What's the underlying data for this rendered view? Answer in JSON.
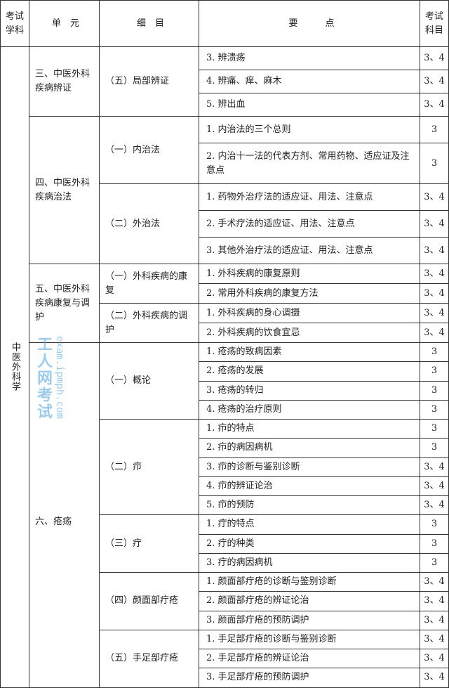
{
  "header": {
    "subject": "考试学科",
    "unit": "单　元",
    "item": "细　目",
    "points": "要　　　点",
    "exam": "考试科目"
  },
  "subject": "中医外科学",
  "units": [
    {
      "name": "三、中医外科疾病辨证",
      "items": [
        {
          "name": "（五）局部辨证",
          "points": [
            {
              "text": "3. 辨溃疡",
              "exam": "3、4"
            },
            {
              "text": "4. 辨痛、痒、麻木",
              "exam": "3、4"
            },
            {
              "text": "5. 辨出血",
              "exam": "3、4"
            }
          ]
        }
      ]
    },
    {
      "name": "四、中医外科疾病治法",
      "items": [
        {
          "name": "（一）内治法",
          "points": [
            {
              "text": "1. 内治法的三个总则",
              "exam": "3"
            },
            {
              "text": "2. 内治十一法的代表方剂、常用药物、适应证及注意点",
              "exam": "3"
            }
          ]
        },
        {
          "name": "（二）外治法",
          "points": [
            {
              "text": "1. 药物外治疗法的适应证、用法、注意点",
              "exam": "3、4"
            },
            {
              "text": "2. 手术疗法的适应证、用法、注意点",
              "exam": "3、4"
            },
            {
              "text": "3. 其他外治疗法的适应证、用法、注意点",
              "exam": "3、4"
            }
          ]
        }
      ]
    },
    {
      "name": "五、中医外科疾病康复与调护",
      "items": [
        {
          "name": "（一）外科疾病的康复",
          "points": [
            {
              "text": "1. 外科疾病的康复原则",
              "exam": "3、4"
            },
            {
              "text": "2. 常用外科疾病的康复方法",
              "exam": "3、4"
            }
          ]
        },
        {
          "name": "（二）外科疾病的调护",
          "points": [
            {
              "text": "1. 外科疾病的身心调摄",
              "exam": "3、4"
            },
            {
              "text": "2. 外科疾病的饮食宜忌",
              "exam": "3、4"
            }
          ]
        }
      ]
    },
    {
      "name": "六、疮疡",
      "items": [
        {
          "name": "（一）概论",
          "points": [
            {
              "text": "1. 疮疡的致病因素",
              "exam": "3"
            },
            {
              "text": "2. 疮疡的发展",
              "exam": "3"
            },
            {
              "text": "3. 疮疡的转归",
              "exam": "3"
            },
            {
              "text": "4. 疮疡的治疗原则",
              "exam": "3"
            }
          ]
        },
        {
          "name": "（二）疖",
          "points": [
            {
              "text": "1. 疖的特点",
              "exam": "3"
            },
            {
              "text": "2. 疖的病因病机",
              "exam": "3"
            },
            {
              "text": "3. 疖的诊断与鉴别诊断",
              "exam": "3、4"
            },
            {
              "text": "4. 疖的辨证论治",
              "exam": "3、4"
            },
            {
              "text": "5. 疖的预防",
              "exam": "3、4"
            }
          ]
        },
        {
          "name": "（三）疔",
          "points": [
            {
              "text": "1. 疔的特点",
              "exam": "3"
            },
            {
              "text": "2. 疔的种类",
              "exam": "3"
            },
            {
              "text": "3. 疔的病因病机",
              "exam": "3"
            }
          ]
        },
        {
          "name": "（四）颜面部疔疮",
          "points": [
            {
              "text": "1. 颜面部疔疮的诊断与鉴别诊断",
              "exam": "3、4"
            },
            {
              "text": "2. 颜面部疔疮的辨证论治",
              "exam": "3、4"
            },
            {
              "text": "3. 颜面部疔疮的预防调护",
              "exam": "3、4"
            }
          ]
        },
        {
          "name": "（五）手足部疔疮",
          "points": [
            {
              "text": "1. 手足部疔疮的诊断与鉴别诊断",
              "exam": "3、4"
            },
            {
              "text": "2. 手足部疔疮的辨证论治",
              "exam": "3、4"
            },
            {
              "text": "3. 手足部疔疮的预防调护",
              "exam": "3、4"
            }
          ]
        }
      ]
    }
  ],
  "watermark": {
    "logo": "工人网考试",
    "url": "exam.ipmph.com",
    "color": "#4aa3e0"
  }
}
